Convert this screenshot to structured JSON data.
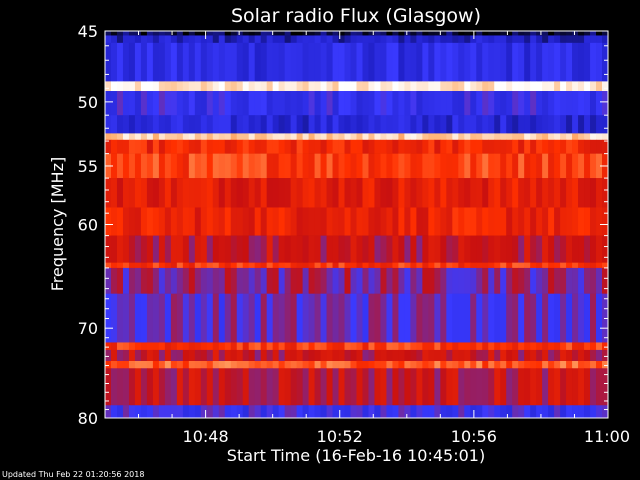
{
  "chart_data": {
    "type": "heatmap",
    "title": "Solar radio Flux (Glasgow)",
    "xlabel": "Start Time (16-Feb-16 10:45:01)",
    "ylabel": "Frequency [MHz]",
    "x_ticks": [
      "10:48",
      "10:52",
      "10:56",
      "11:00"
    ],
    "x_tick_minutes": [
      3,
      7,
      11,
      15
    ],
    "xlim_minutes": [
      0,
      15
    ],
    "y_ticks": [
      45,
      50,
      55,
      60,
      70,
      80
    ],
    "ylim": [
      45,
      80
    ],
    "y_scale": "log",
    "colormap": [
      "#000000",
      "#2020c8",
      "#3a3aff",
      "#c81010",
      "#ff3000",
      "#ffb070",
      "#ffffff"
    ],
    "frequency_bands": [
      {
        "from": 45.0,
        "to": 45.3,
        "level": 0.05
      },
      {
        "from": 45.3,
        "to": 45.8,
        "level": 0.18
      },
      {
        "from": 45.8,
        "to": 48.5,
        "level": 0.25
      },
      {
        "from": 48.5,
        "to": 49.2,
        "level": 0.95
      },
      {
        "from": 49.2,
        "to": 51.0,
        "level": 0.3
      },
      {
        "from": 51.0,
        "to": 52.4,
        "level": 0.22
      },
      {
        "from": 52.4,
        "to": 52.9,
        "level": 0.9
      },
      {
        "from": 52.9,
        "to": 54.0,
        "level": 0.62
      },
      {
        "from": 54.0,
        "to": 56.0,
        "level": 0.68
      },
      {
        "from": 56.0,
        "to": 58.5,
        "level": 0.58
      },
      {
        "from": 58.5,
        "to": 61.0,
        "level": 0.6
      },
      {
        "from": 61.0,
        "to": 63.5,
        "level": 0.5
      },
      {
        "from": 63.5,
        "to": 64.0,
        "level": 0.66
      },
      {
        "from": 64.0,
        "to": 66.5,
        "level": 0.42
      },
      {
        "from": 66.5,
        "to": 71.5,
        "level": 0.38
      },
      {
        "from": 71.5,
        "to": 72.3,
        "level": 0.66
      },
      {
        "from": 72.3,
        "to": 73.5,
        "level": 0.5
      },
      {
        "from": 73.5,
        "to": 74.3,
        "level": 0.72
      },
      {
        "from": 74.3,
        "to": 78.5,
        "level": 0.5
      },
      {
        "from": 78.5,
        "to": 80.0,
        "level": 0.32
      }
    ]
  },
  "footer": "Updated Thu Feb 22 01:20:56 2018"
}
